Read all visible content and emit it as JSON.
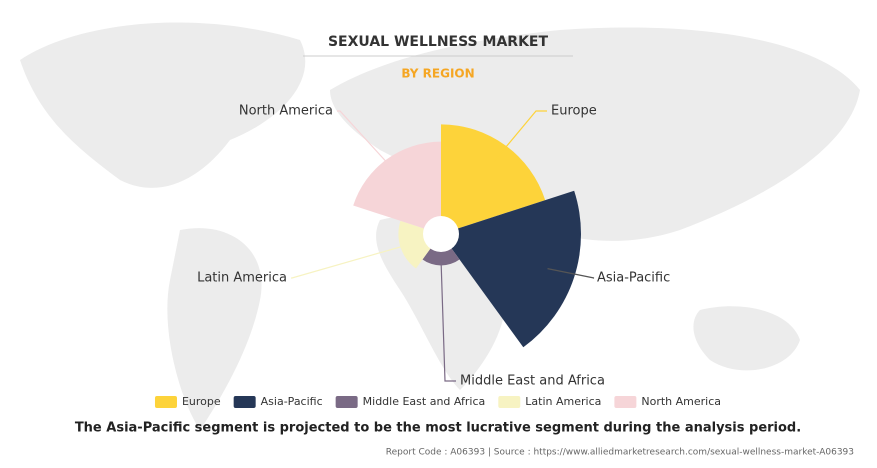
{
  "chart_data": {
    "type": "polar",
    "title": "SEXUAL WELLNESS MARKET",
    "subtitle": "BY REGION",
    "categories": [
      "Europe",
      "Asia-Pacific",
      "Middle East and Africa",
      "Latin America",
      "North America"
    ],
    "values": [
      108,
      138,
      31,
      42,
      91
    ],
    "colors": [
      "#fdd33a",
      "#253757",
      "#7a6a85",
      "#f7f3c2",
      "#f6d5d8"
    ],
    "caption": "The Asia-Pacific segment is projected to be the most lucrative segment during the analysis period.",
    "source": "Report Code : A06393  |  Source : https://www.alliedmarketresearch.com/sexual-wellness-market-A06393"
  }
}
